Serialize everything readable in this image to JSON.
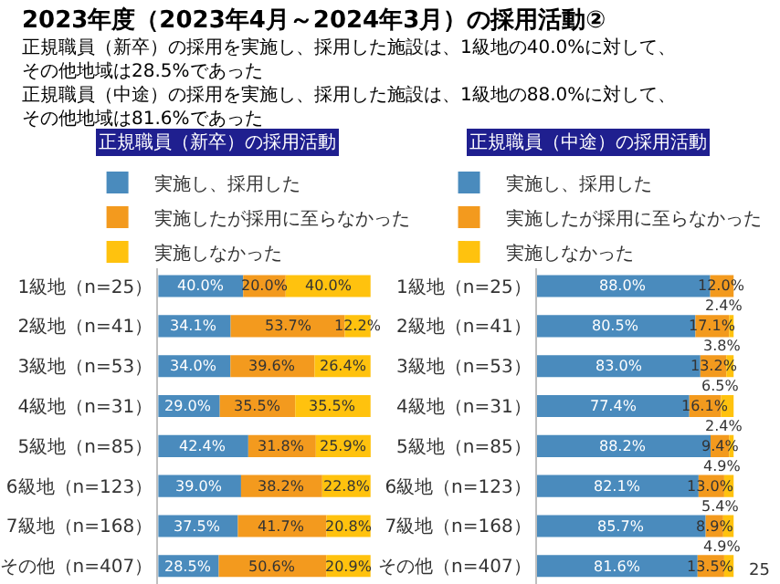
{
  "chart_data": [
    {
      "type": "bar",
      "orientation": "horizontal",
      "stacked": true,
      "title": "正規職員（新卒）の採用活動",
      "legend": "top",
      "tick_labels": "y",
      "xlim": [
        0,
        100
      ],
      "annotations": [
        "2023年度（2023年4月～2024年3月）の採用活動②",
        "正規職員（新卒）の採用を実施し、採用した施設は、1級地の40.0%に対して、その他地域は28.5%であった",
        "正規職員（中途）の採用を実施し、採用した施設は、1級地の88.0%に対して、その他地域は81.6%であった",
        "25"
      ],
      "categories": [
        "1級地（n=25）",
        "2級地（n=41）",
        "3級地（n=53）",
        "4級地（n=31）",
        "5級地（n=85）",
        "6級地（n=123）",
        "7級地（n=168）",
        "その他（n=407）"
      ],
      "series": [
        {
          "name": "実施し、採用した",
          "color": "#4a8bbd",
          "values": [
            40.0,
            34.1,
            34.0,
            29.0,
            42.4,
            39.0,
            37.5,
            28.5
          ],
          "value_labels": [
            "40.0%",
            "34.1%",
            "34.0%",
            "29.0%",
            "42.4%",
            "39.0%",
            "37.5%",
            "28.5%"
          ]
        },
        {
          "name": "実施したが採用に至らなかった",
          "color": "#f39a1e",
          "values": [
            20.0,
            53.7,
            39.6,
            35.5,
            31.8,
            38.2,
            41.7,
            50.6
          ],
          "value_labels": [
            "20.0%",
            "53.7%",
            "39.6%",
            "35.5%",
            "31.8%",
            "38.2%",
            "41.7%",
            "50.6%"
          ]
        },
        {
          "name": "実施しなかった",
          "color": "#ffc20e",
          "values": [
            40.0,
            12.2,
            26.4,
            35.5,
            25.9,
            22.8,
            20.8,
            20.9
          ],
          "value_labels": [
            "40.0%",
            "12.2%",
            "26.4%",
            "35.5%",
            "25.9%",
            "22.8%",
            "20.8%",
            "20.9%"
          ]
        }
      ]
    },
    {
      "type": "bar",
      "orientation": "horizontal",
      "stacked": true,
      "title": "正規職員（中途）の採用活動",
      "legend": "top",
      "tick_labels": "y",
      "xlim": [
        0,
        100
      ],
      "categories": [
        "1級地（n=25）",
        "2級地（n=41）",
        "3級地（n=53）",
        "4級地（n=31）",
        "5級地（n=85）",
        "6級地（n=123）",
        "7級地（n=168）",
        "その他（n=407）"
      ],
      "series": [
        {
          "name": "実施し、採用した",
          "color": "#4a8bbd",
          "values": [
            88.0,
            80.5,
            83.0,
            77.4,
            88.2,
            82.1,
            85.7,
            81.6
          ],
          "value_labels": [
            "88.0%",
            "80.5%",
            "83.0%",
            "77.4%",
            "88.2%",
            "82.1%",
            "85.7%",
            "81.6%"
          ]
        },
        {
          "name": "実施したが採用に至らなかった",
          "color": "#f39a1e",
          "values": [
            12.0,
            17.1,
            13.2,
            16.1,
            9.4,
            13.0,
            8.9,
            13.5
          ],
          "value_labels": [
            "12.0%",
            "17.1%",
            "13.2%",
            "16.1%",
            "9.4%",
            "13.0%",
            "8.9%",
            "13.5%"
          ]
        },
        {
          "name": "実施しなかった",
          "color": "#ffc20e",
          "values": [
            0,
            2.4,
            3.8,
            6.5,
            2.4,
            4.9,
            5.4,
            4.9
          ],
          "value_labels": [
            null,
            "2.4%",
            "3.8%",
            "6.5%",
            "2.4%",
            "4.9%",
            "5.4%",
            "4.9%"
          ]
        }
      ]
    }
  ]
}
